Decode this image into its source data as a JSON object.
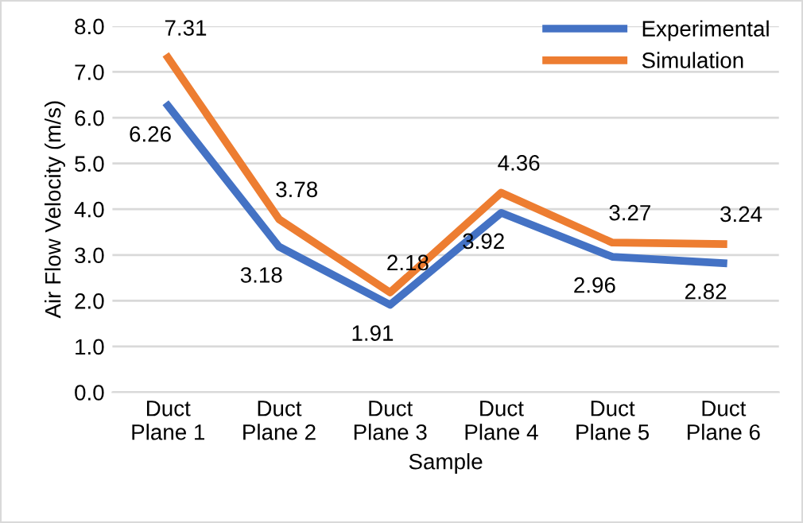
{
  "chart_data": {
    "type": "line",
    "xlabel": "Sample",
    "ylabel": "Air Flow Velocity (m/s)",
    "categories": [
      "Duct\nPlane 1",
      "Duct\nPlane 2",
      "Duct\nPlane 3",
      "Duct\nPlane 4",
      "Duct\nPlane 5",
      "Duct\nPlane 6"
    ],
    "series": [
      {
        "name": "Experimental",
        "color": "#4472c4",
        "values": [
          6.26,
          3.18,
          1.91,
          3.92,
          2.96,
          2.82
        ]
      },
      {
        "name": "Simulation",
        "color": "#ed7d31",
        "values": [
          7.31,
          3.78,
          2.18,
          4.36,
          3.27,
          3.24
        ]
      }
    ],
    "ylim": [
      0,
      8
    ],
    "yticks": [
      {
        "value": 0,
        "label": "0.0"
      },
      {
        "value": 1,
        "label": "1.0"
      },
      {
        "value": 2,
        "label": "2.0"
      },
      {
        "value": 3,
        "label": "3.0"
      },
      {
        "value": 4,
        "label": "4.0"
      },
      {
        "value": 5,
        "label": "5.0"
      },
      {
        "value": 6,
        "label": "6.0"
      },
      {
        "value": 7,
        "label": "7.0"
      },
      {
        "value": 8,
        "label": "8.0"
      }
    ],
    "grid": "y",
    "legend": "top right",
    "data_labels": true,
    "marker": "none",
    "line_style": "solid"
  }
}
